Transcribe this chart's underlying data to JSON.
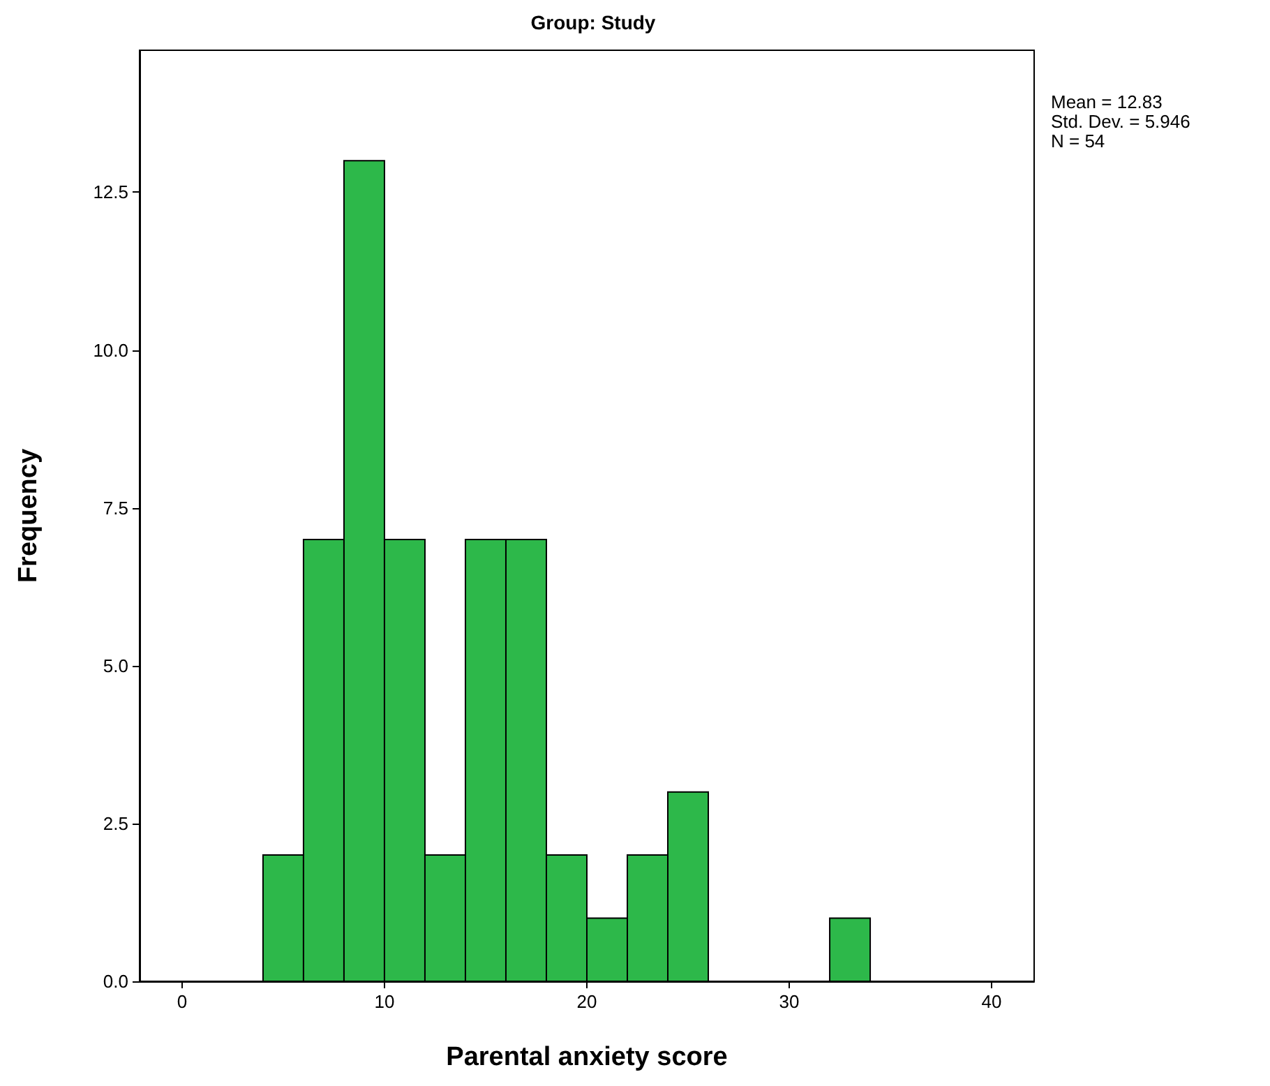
{
  "chart_data": {
    "type": "histogram",
    "title": "Group: Study",
    "xlabel": "Parental anxiety score",
    "ylabel": "Frequency",
    "bins": [
      4,
      6,
      8,
      10,
      12,
      14,
      16,
      18,
      20,
      22,
      24,
      26,
      28,
      30,
      32,
      34
    ],
    "values": [
      2,
      7,
      13,
      7,
      2,
      7,
      7,
      2,
      1,
      2,
      3,
      0,
      0,
      0,
      1
    ],
    "color": "#2db84a",
    "xlim": [
      -2.1,
      42.1
    ],
    "xticks": [
      0,
      10,
      20,
      30,
      40
    ],
    "ylim": [
      0,
      14.75
    ],
    "yticks": [
      {
        "value": 0,
        "label": "0.0"
      },
      {
        "value": 2.5,
        "label": "2.5"
      },
      {
        "value": 5,
        "label": "5.0"
      },
      {
        "value": 7.5,
        "label": "7.5"
      },
      {
        "value": 10,
        "label": "10.0"
      },
      {
        "value": 12.5,
        "label": "12.5"
      }
    ],
    "grid": false,
    "annotations": [
      "Mean = 12.83",
      "Std. Dev. = 5.946",
      "N = 54"
    ]
  }
}
